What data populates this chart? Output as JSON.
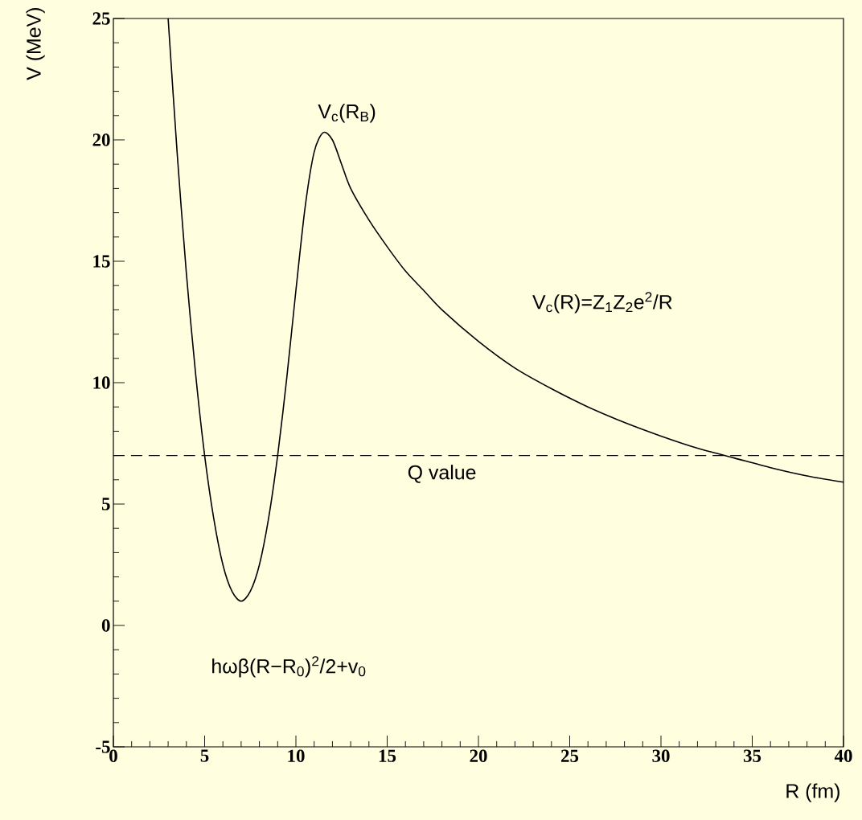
{
  "chart_data": {
    "type": "line",
    "xlabel": "R (fm)",
    "ylabel": "V (MeV)",
    "x": [
      3,
      3.5,
      4,
      4.5,
      5,
      5.5,
      6,
      6.5,
      7,
      7.5,
      8,
      8.5,
      9,
      9.5,
      10,
      10.5,
      11,
      11.5,
      12,
      12.5,
      13,
      14,
      15,
      16,
      17,
      18,
      20,
      22,
      24,
      26,
      28,
      30,
      32,
      34,
      36,
      38,
      40
    ],
    "values": [
      25,
      19.4,
      14.5,
      10.4,
      7,
      4.4,
      2.5,
      1.4,
      1.0,
      1.4,
      2.5,
      4.4,
      7,
      10.2,
      13.8,
      17.2,
      19.5,
      20.3,
      20.0,
      19.0,
      18.0,
      16.7,
      15.6,
      14.6,
      13.8,
      13.0,
      11.7,
      10.6,
      9.75,
      9.0,
      8.36,
      7.8,
      7.3,
      6.9,
      6.5,
      6.16,
      5.9
    ],
    "color": "#000000",
    "xlim": [
      0,
      40
    ],
    "ylim": [
      -5,
      25
    ],
    "xticks": [
      0,
      5,
      10,
      15,
      20,
      25,
      30,
      35,
      40
    ],
    "yticks": [
      -5,
      0,
      5,
      10,
      15,
      20,
      25
    ],
    "marker": "none",
    "line_style": "solid",
    "ref_lines": [
      {
        "axis": "y",
        "value": 7,
        "label": "Q value",
        "line_style": "dashed",
        "color": "#000000"
      }
    ],
    "annotations": [
      "V$_{c}$(R$_{B}$)",
      "V$_{c}$(R)=Z$_{1}$Z$_{2}$e$^{2}$/R",
      "hωβ(R−R$_{0}$)$^{2}$/2+v$_{0}$"
    ]
  }
}
